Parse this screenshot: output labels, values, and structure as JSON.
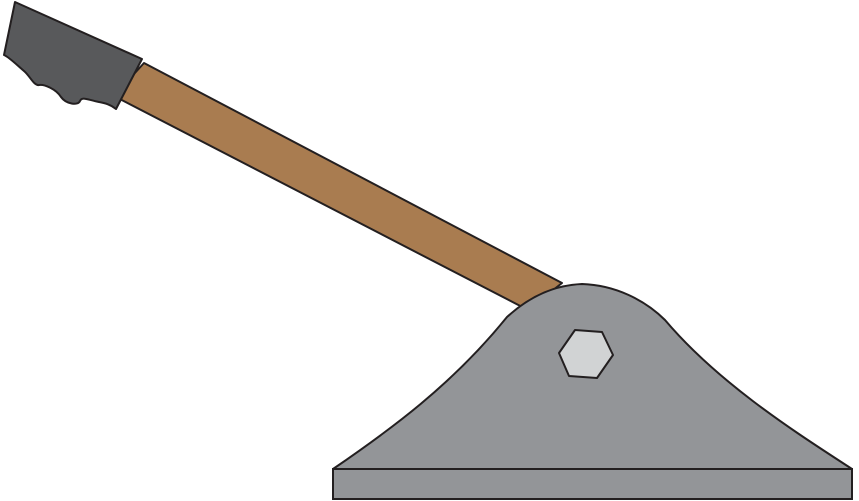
{
  "figure": {
    "subject": "lever",
    "parts": [
      "grip",
      "lever-arm",
      "base-plate",
      "pivot-housing",
      "hex-bolt"
    ]
  },
  "colors": {
    "background": "#ffffff",
    "outline": "#231f20",
    "grip": "#58595b",
    "lever_arm": "#a97c50",
    "base_housing": "#939598",
    "base_plate": "#939598",
    "bolt": "#d1d3d4"
  }
}
